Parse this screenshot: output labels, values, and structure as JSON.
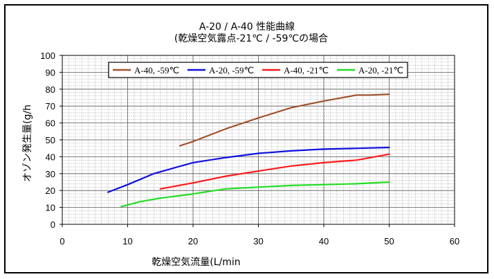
{
  "chart_data": {
    "type": "line",
    "title": "A-20 / A-40 性能曲線",
    "subtitle": "(乾燥空気露点-21℃ / -59℃の場合",
    "xlabel": "乾燥空気流量(L/min",
    "ylabel": "オゾン発生量(g/h",
    "xlim": [
      0,
      60
    ],
    "ylim": [
      0,
      100
    ],
    "xticks": [
      "0",
      "10",
      "20",
      "30",
      "40",
      "50",
      "60"
    ],
    "yticks": [
      "0",
      "10",
      "20",
      "30",
      "40",
      "50",
      "60",
      "70",
      "80",
      "90",
      "100"
    ],
    "grid": true,
    "legend_position": "top",
    "series": [
      {
        "name": "A-40, -59℃",
        "color": "#a0522d",
        "x": [
          18,
          20,
          25,
          30,
          35,
          40,
          45,
          47,
          50
        ],
        "y": [
          46.5,
          49,
          56.5,
          63,
          69,
          73,
          76.5,
          76.5,
          77
        ]
      },
      {
        "name": "A-20, -59℃",
        "color": "#1010e0",
        "x": [
          7,
          10,
          14,
          20,
          25,
          30,
          35,
          40,
          45,
          50
        ],
        "y": [
          19,
          23.5,
          30,
          36.5,
          39.5,
          42,
          43.5,
          44.5,
          45,
          45.5
        ]
      },
      {
        "name": "A-40, -21℃",
        "color": "#ff1a1a",
        "x": [
          15,
          20,
          25,
          30,
          35,
          40,
          45,
          50
        ],
        "y": [
          21,
          24.5,
          28.5,
          31.5,
          34.5,
          36.5,
          38,
          41.5
        ]
      },
      {
        "name": "A-20, -21℃",
        "color": "#22dd22",
        "x": [
          9,
          12,
          15,
          20,
          25,
          30,
          35,
          40,
          45,
          50
        ],
        "y": [
          10.5,
          13.5,
          15.5,
          18,
          21,
          22,
          23,
          23.5,
          24,
          25
        ]
      }
    ]
  }
}
